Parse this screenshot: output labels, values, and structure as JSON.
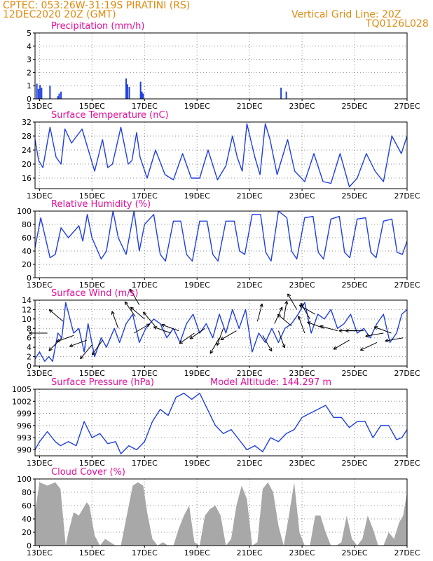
{
  "header": {
    "station_line": "CPTEC:   053:26W-31:19S   PIRATINI (RS)",
    "date_line": "12DEC2020 20Z (GMT)",
    "grid_line": "Vertical Grid Line: 20Z",
    "code": "TQ0126L028"
  },
  "colors": {
    "header": "#e08a10",
    "title": "#e0109a",
    "line": "#1f3fe0",
    "cloud": "#a8a8a8",
    "arrow": "#000000"
  },
  "x_axis": {
    "start_day": 12.83,
    "end_day": 27.0,
    "tick_days": [
      13,
      15,
      17,
      19,
      21,
      23,
      25,
      27
    ],
    "tick_labels": [
      "13DEC",
      "15DEC",
      "17DEC",
      "19DEC",
      "21DEC",
      "23DEC",
      "25DEC",
      "27DEC"
    ]
  },
  "chart_data": [
    {
      "type": "bar",
      "title": "Precipitation (mm/h)",
      "ylim": [
        0,
        5
      ],
      "yticks": [
        0,
        1,
        2,
        3,
        4,
        5
      ],
      "grid": true,
      "x": [
        12.9,
        12.96,
        13.02,
        13.08,
        13.4,
        13.7,
        13.75,
        13.82,
        16.3,
        16.35,
        16.42,
        16.85,
        16.9,
        16.95,
        22.2,
        22.4
      ],
      "values": [
        1.15,
        0.75,
        1.05,
        0.85,
        1.0,
        0.2,
        0.4,
        0.55,
        1.55,
        1.1,
        0.9,
        1.3,
        0.55,
        0.4,
        0.85,
        0.55
      ]
    },
    {
      "type": "line",
      "title": "Surface Temperature (nC)",
      "ylim": [
        13,
        32
      ],
      "yticks": [
        16,
        20,
        24,
        28,
        32
      ],
      "grid": true,
      "x": [
        12.83,
        12.97,
        13.13,
        13.4,
        13.63,
        13.82,
        13.97,
        14.22,
        14.62,
        14.82,
        15.1,
        15.4,
        15.6,
        15.78,
        16.1,
        16.38,
        16.52,
        16.7,
        16.83,
        17.1,
        17.42,
        17.78,
        18.1,
        18.45,
        18.78,
        19.1,
        19.42,
        19.78,
        20.1,
        20.35,
        20.53,
        20.72,
        20.9,
        21.2,
        21.4,
        21.6,
        21.78,
        22.05,
        22.45,
        22.72,
        23.1,
        23.45,
        23.8,
        24.1,
        24.45,
        24.8,
        25.1,
        25.45,
        25.78,
        26.1,
        26.42,
        26.78,
        27.0
      ],
      "values": [
        27,
        21,
        19,
        30.5,
        22,
        20,
        30,
        26,
        30,
        25,
        18,
        27,
        19,
        20,
        30.5,
        20,
        21,
        29,
        22,
        16,
        24,
        17,
        15.5,
        23,
        16,
        16,
        24,
        15.5,
        19.5,
        28,
        22,
        18,
        31.5,
        22,
        17,
        31.5,
        27,
        17,
        27,
        18,
        15,
        23,
        15,
        14.5,
        23,
        13.5,
        16,
        23,
        18,
        15,
        28,
        23,
        28
      ]
    },
    {
      "type": "line",
      "title": "Relative Humidity (%)",
      "ylim": [
        0,
        100
      ],
      "yticks": [
        0,
        20,
        40,
        60,
        80,
        100
      ],
      "grid": true,
      "x": [
        12.83,
        13.05,
        13.4,
        13.6,
        13.82,
        14.1,
        14.5,
        14.65,
        14.82,
        15.0,
        15.35,
        15.55,
        15.8,
        16.0,
        16.3,
        16.6,
        16.8,
        17.0,
        17.35,
        17.6,
        17.8,
        18.1,
        18.38,
        18.6,
        18.82,
        19.1,
        19.38,
        19.6,
        19.8,
        20.1,
        20.42,
        20.62,
        20.82,
        21.1,
        21.42,
        21.62,
        21.82,
        22.1,
        22.42,
        22.6,
        22.8,
        23.1,
        23.42,
        23.62,
        23.82,
        24.1,
        24.42,
        24.62,
        24.82,
        25.1,
        25.42,
        25.62,
        25.82,
        26.1,
        26.42,
        26.62,
        26.82,
        27.0
      ],
      "values": [
        45,
        90,
        30,
        35,
        75,
        60,
        78,
        55,
        95,
        60,
        28,
        40,
        100,
        60,
        35,
        100,
        40,
        80,
        95,
        35,
        25,
        85,
        85,
        35,
        25,
        85,
        85,
        35,
        25,
        85,
        85,
        40,
        35,
        95,
        95,
        38,
        25,
        100,
        90,
        40,
        28,
        90,
        92,
        38,
        28,
        88,
        92,
        38,
        30,
        88,
        90,
        38,
        30,
        85,
        88,
        38,
        35,
        55
      ]
    },
    {
      "type": "line",
      "title": "Surface Wind (m/s)",
      "ylim": [
        0,
        14
      ],
      "yticks": [
        0,
        2,
        4,
        6,
        8,
        10,
        12,
        14
      ],
      "grid": true,
      "x": [
        12.83,
        13.0,
        13.2,
        13.35,
        13.5,
        13.7,
        13.85,
        14.0,
        14.3,
        14.5,
        14.7,
        14.85,
        15.1,
        15.35,
        15.55,
        15.85,
        16.05,
        16.3,
        16.55,
        16.8,
        17.05,
        17.35,
        17.6,
        17.85,
        18.1,
        18.35,
        18.6,
        18.85,
        19.1,
        19.35,
        19.6,
        19.85,
        20.1,
        20.35,
        20.6,
        20.85,
        21.1,
        21.35,
        21.6,
        21.85,
        22.1,
        22.35,
        22.6,
        22.85,
        23.1,
        23.35,
        23.6,
        23.85,
        24.1,
        24.35,
        24.6,
        24.85,
        25.1,
        25.35,
        25.6,
        25.85,
        26.1,
        26.35,
        26.6,
        26.8,
        27.0
      ],
      "values": [
        1.5,
        3,
        1,
        2,
        1,
        7,
        6,
        13.5,
        7,
        8,
        3,
        9,
        2,
        6,
        4,
        8,
        5,
        9,
        11,
        5,
        8,
        10,
        9,
        6,
        8,
        5,
        9,
        11,
        7,
        9,
        6,
        11,
        7,
        12,
        8,
        12,
        3,
        7,
        5,
        8,
        5,
        8,
        9,
        11,
        13.5,
        7,
        11,
        10,
        12,
        8,
        9,
        11,
        7,
        8,
        6,
        9,
        11,
        5,
        7,
        11,
        12
      ]
    },
    {
      "type": "line",
      "title": "Surface Pressure (hPa)",
      "subtitle": "Model Altitude: 144.297 m",
      "ylim": [
        988.5,
        1005
      ],
      "yticks": [
        990,
        993,
        996,
        999,
        1002,
        1005
      ],
      "grid": true,
      "x": [
        12.83,
        13.0,
        13.3,
        13.6,
        13.8,
        14.1,
        14.4,
        14.7,
        15.0,
        15.3,
        15.6,
        15.9,
        16.1,
        16.4,
        16.7,
        17.0,
        17.3,
        17.6,
        17.9,
        18.2,
        18.5,
        18.8,
        19.1,
        19.4,
        19.7,
        20.0,
        20.3,
        20.6,
        20.9,
        21.2,
        21.5,
        21.8,
        22.1,
        22.4,
        22.7,
        23.0,
        23.3,
        23.6,
        23.9,
        24.2,
        24.5,
        24.8,
        25.1,
        25.4,
        25.7,
        26.0,
        26.3,
        26.6,
        26.8,
        27.0
      ],
      "values": [
        990,
        992,
        994.5,
        992,
        991,
        992,
        991,
        997,
        993,
        994,
        991.5,
        992,
        989,
        991,
        990,
        992,
        997,
        1000,
        998.5,
        1003,
        1004,
        1002.5,
        1004,
        1000,
        996,
        994,
        995,
        992.5,
        990,
        991,
        989.5,
        993,
        992,
        994,
        995,
        998,
        999,
        1000,
        1001,
        998,
        998,
        995.5,
        997,
        997,
        993,
        996,
        996,
        992.5,
        993,
        995
      ]
    },
    {
      "type": "area",
      "title": "Cloud Cover (%)",
      "ylim": [
        0,
        100
      ],
      "yticks": [
        0,
        20,
        40,
        60,
        80,
        100
      ],
      "grid": true,
      "x": [
        12.83,
        13.0,
        13.3,
        13.6,
        13.8,
        14.0,
        14.1,
        14.3,
        14.5,
        14.65,
        14.8,
        14.9,
        15.1,
        15.3,
        15.5,
        15.7,
        15.9,
        16.1,
        16.3,
        16.55,
        16.75,
        16.95,
        17.1,
        17.3,
        17.5,
        17.7,
        17.9,
        18.1,
        18.3,
        18.5,
        18.7,
        18.9,
        19.1,
        19.3,
        19.5,
        19.7,
        19.9,
        20.1,
        20.3,
        20.5,
        20.7,
        20.9,
        21.1,
        21.3,
        21.5,
        21.7,
        21.9,
        22.1,
        22.3,
        22.5,
        22.7,
        22.9,
        23.1,
        23.3,
        23.5,
        23.7,
        23.9,
        24.1,
        24.3,
        24.5,
        24.7,
        24.9,
        25.1,
        25.3,
        25.5,
        25.7,
        25.9,
        26.1,
        26.3,
        26.5,
        26.7,
        26.85,
        27.0
      ],
      "values": [
        50,
        95,
        90,
        95,
        85,
        0,
        20,
        50,
        45,
        55,
        65,
        60,
        15,
        0,
        10,
        5,
        0,
        0,
        40,
        90,
        95,
        90,
        50,
        10,
        0,
        5,
        0,
        0,
        25,
        45,
        60,
        5,
        0,
        45,
        55,
        60,
        45,
        0,
        10,
        60,
        90,
        70,
        0,
        5,
        85,
        95,
        80,
        30,
        0,
        45,
        95,
        20,
        0,
        0,
        45,
        45,
        20,
        0,
        0,
        5,
        45,
        10,
        0,
        10,
        45,
        25,
        0,
        0,
        20,
        10,
        35,
        45,
        80
      ]
    }
  ],
  "wind_arrows": [
    {
      "x": 13.3,
      "y": 7,
      "angle": 180
    },
    {
      "x": 13.85,
      "y": 6,
      "angle": 225
    },
    {
      "x": 13.9,
      "y": 9.5,
      "angle": 140
    },
    {
      "x": 14.3,
      "y": 6.5,
      "angle": 200
    },
    {
      "x": 14.8,
      "y": 5.5,
      "angle": 200
    },
    {
      "x": 15.0,
      "y": 4.5,
      "angle": 230
    },
    {
      "x": 15.4,
      "y": 5.5,
      "angle": 235
    },
    {
      "x": 16.0,
      "y": 8,
      "angle": 110
    },
    {
      "x": 16.6,
      "y": 7,
      "angle": 30
    },
    {
      "x": 16.65,
      "y": 10.5,
      "angle": 125
    },
    {
      "x": 16.8,
      "y": 13,
      "angle": 120
    },
    {
      "x": 17.0,
      "y": 10,
      "angle": 140
    },
    {
      "x": 17.4,
      "y": 8.5,
      "angle": 130
    },
    {
      "x": 18.0,
      "y": 7,
      "angle": 160
    },
    {
      "x": 18.3,
      "y": 7.5,
      "angle": 160
    },
    {
      "x": 18.9,
      "y": 7,
      "angle": 215
    },
    {
      "x": 19.3,
      "y": 8,
      "angle": 215
    },
    {
      "x": 19.85,
      "y": 6,
      "angle": 240
    },
    {
      "x": 20.0,
      "y": 8,
      "angle": 250
    },
    {
      "x": 20.5,
      "y": 7.5,
      "angle": 210
    },
    {
      "x": 21.3,
      "y": 9.5,
      "angle": 75
    },
    {
      "x": 21.5,
      "y": 6.5,
      "angle": 300
    },
    {
      "x": 21.95,
      "y": 9,
      "angle": 65
    },
    {
      "x": 22.1,
      "y": 7.5,
      "angle": 290
    },
    {
      "x": 22.3,
      "y": 10,
      "angle": 80
    },
    {
      "x": 22.6,
      "y": 8.5,
      "angle": 140
    },
    {
      "x": 22.8,
      "y": 12,
      "angle": 120
    },
    {
      "x": 23.1,
      "y": 7,
      "angle": 110
    },
    {
      "x": 23.3,
      "y": 10,
      "angle": 120
    },
    {
      "x": 23.5,
      "y": 11,
      "angle": 150
    },
    {
      "x": 23.85,
      "y": 8,
      "angle": 160
    },
    {
      "x": 24.35,
      "y": 7.5,
      "angle": 165
    },
    {
      "x": 24.8,
      "y": 5.5,
      "angle": 210
    },
    {
      "x": 25.1,
      "y": 7.5,
      "angle": 180
    },
    {
      "x": 25.35,
      "y": 7.5,
      "angle": 180
    },
    {
      "x": 25.85,
      "y": 5,
      "angle": 205
    },
    {
      "x": 26.1,
      "y": 7,
      "angle": 190
    },
    {
      "x": 26.4,
      "y": 7,
      "angle": 160
    },
    {
      "x": 26.85,
      "y": 6,
      "angle": 190
    }
  ]
}
